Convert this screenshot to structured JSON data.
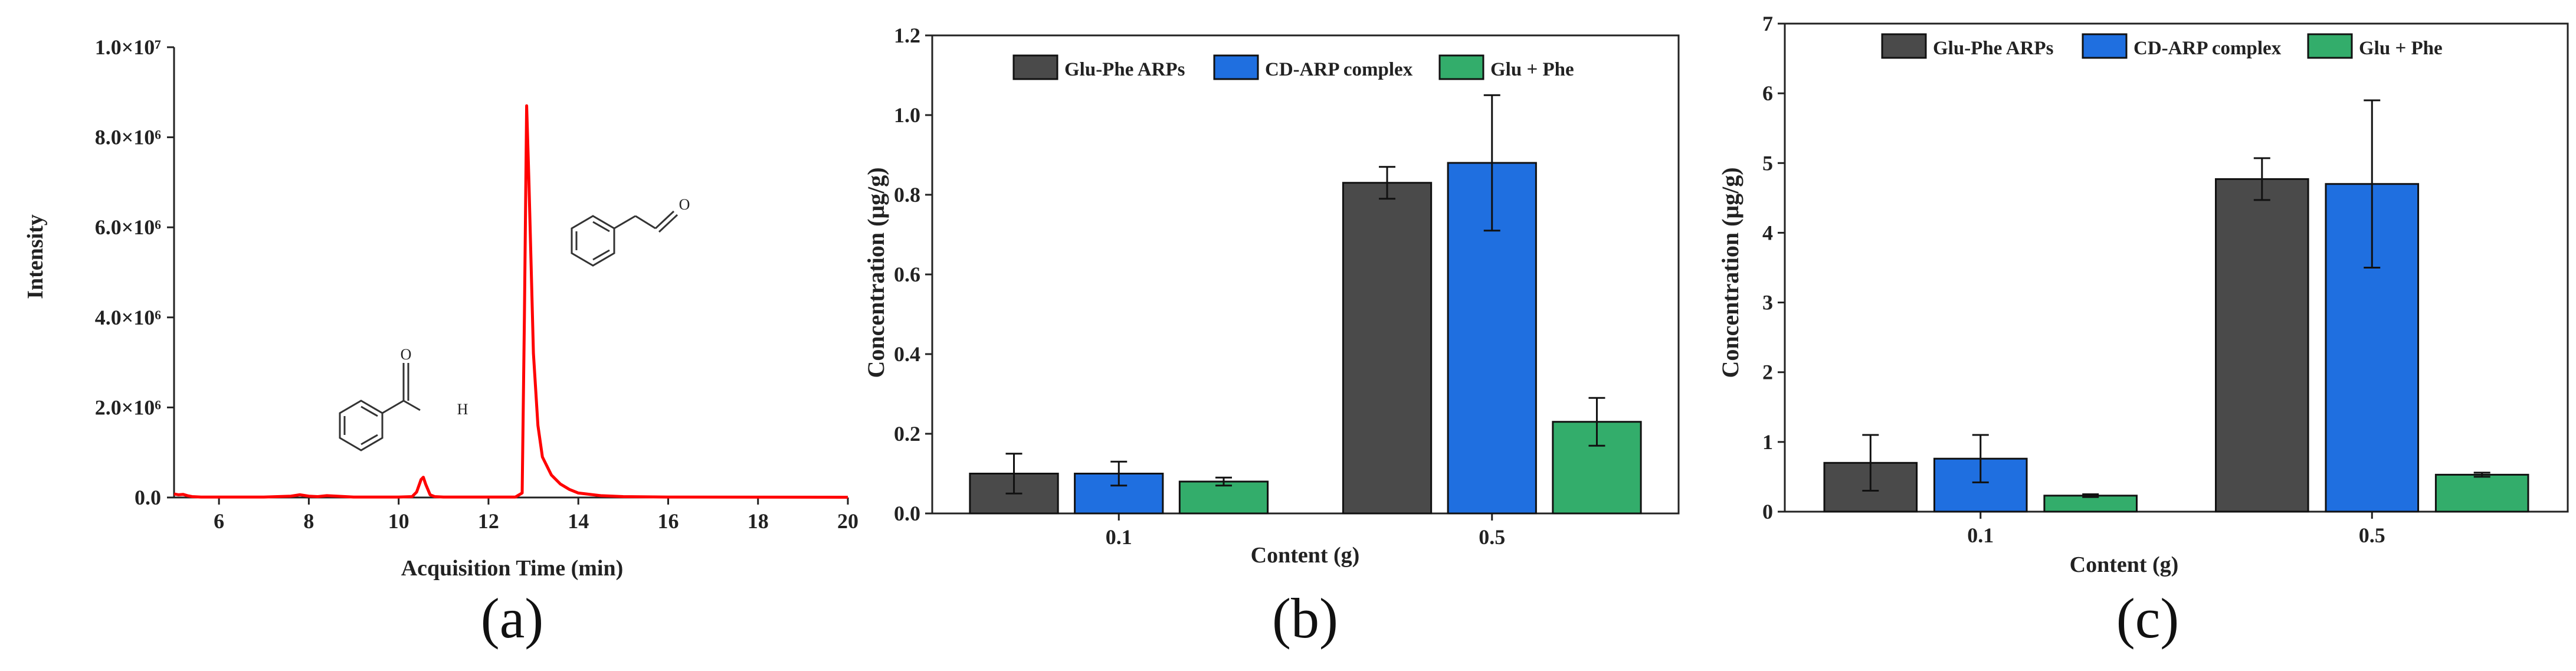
{
  "colors": {
    "glu_phe_arps": "#4a4a4a",
    "cd_arp_complex": "#1f6fe0",
    "glu_phe": "#33ad6b",
    "chromatogram": "#ff0000",
    "axis": "#222222"
  },
  "chart_data": [
    {
      "id": "a",
      "type": "line",
      "panel_label": "(a)",
      "xlabel": "Acquisition Time (min)",
      "ylabel": "Intensity",
      "xlim": [
        5,
        20
      ],
      "ylim": [
        0,
        10000000
      ],
      "x_ticks": [
        6,
        8,
        10,
        12,
        14,
        16,
        18,
        20
      ],
      "x_tick_labels": [
        "6",
        "8",
        "10",
        "12",
        "14",
        "16",
        "18",
        "20"
      ],
      "y_ticks": [
        0,
        2000000,
        4000000,
        6000000,
        8000000,
        10000000
      ],
      "y_tick_labels": [
        "0.0",
        "2.0×10⁶",
        "4.0×10⁶",
        "6.0×10⁶",
        "8.0×10⁶",
        "1.0×10⁷"
      ],
      "series": [
        {
          "name": "chromatogram",
          "x": [
            5.0,
            5.1,
            5.2,
            5.3,
            5.4,
            5.6,
            6.0,
            7.0,
            7.6,
            7.8,
            8.0,
            8.2,
            8.4,
            9.0,
            10.0,
            10.3,
            10.4,
            10.5,
            10.55,
            10.6,
            10.7,
            10.8,
            11.0,
            12.0,
            12.6,
            12.75,
            12.8,
            12.85,
            12.9,
            13.0,
            13.1,
            13.2,
            13.4,
            13.6,
            13.8,
            14.0,
            14.5,
            15.0,
            16.0,
            20.0
          ],
          "y": [
            80000,
            60000,
            70000,
            40000,
            20000,
            10000,
            10000,
            10000,
            30000,
            60000,
            30000,
            20000,
            40000,
            10000,
            10000,
            20000,
            120000,
            400000,
            450000,
            300000,
            60000,
            20000,
            10000,
            10000,
            10000,
            100000,
            4000000,
            8700000,
            7000000,
            3200000,
            1600000,
            900000,
            500000,
            300000,
            180000,
            100000,
            40000,
            20000,
            10000,
            5000
          ]
        }
      ]
    },
    {
      "id": "b",
      "type": "bar",
      "panel_label": "(b)",
      "xlabel": "Content (g)",
      "ylabel": "Concentration (μg/g)",
      "categories": [
        "0.1",
        "0.5"
      ],
      "ylim": [
        0,
        1.2
      ],
      "y_ticks": [
        0,
        0.2,
        0.4,
        0.6,
        0.8,
        1.0,
        1.2
      ],
      "y_tick_labels": [
        "0.0",
        "0.2",
        "0.4",
        "0.6",
        "0.8",
        "1.0",
        "1.2"
      ],
      "legend_position": "top",
      "series": [
        {
          "name": "Glu-Phe ARPs",
          "values": [
            0.1,
            0.83
          ],
          "errors": [
            0.05,
            0.04
          ]
        },
        {
          "name": "CD-ARP complex",
          "values": [
            0.1,
            0.88
          ],
          "errors": [
            0.03,
            0.17
          ]
        },
        {
          "name": "Glu + Phe",
          "values": [
            0.08,
            0.23
          ],
          "errors": [
            0.01,
            0.06
          ]
        }
      ]
    },
    {
      "id": "c",
      "type": "bar",
      "panel_label": "(c)",
      "xlabel": "Content (g)",
      "ylabel": "Concentration (μg/g)",
      "categories": [
        "0.1",
        "0.5"
      ],
      "ylim": [
        0,
        7
      ],
      "y_ticks": [
        0,
        1,
        2,
        3,
        4,
        5,
        6,
        7
      ],
      "y_tick_labels": [
        "0",
        "1",
        "2",
        "3",
        "4",
        "5",
        "6",
        "7"
      ],
      "legend_position": "top",
      "series": [
        {
          "name": "Glu-Phe ARPs",
          "values": [
            0.7,
            4.77
          ],
          "errors": [
            0.4,
            0.3
          ]
        },
        {
          "name": "CD-ARP complex",
          "values": [
            0.76,
            4.7
          ],
          "errors": [
            0.34,
            1.2
          ]
        },
        {
          "name": "Glu + Phe",
          "values": [
            0.23,
            0.53
          ],
          "errors": [
            0.02,
            0.03
          ]
        }
      ]
    }
  ],
  "structures": [
    {
      "name": "benzaldehyde",
      "atoms": [
        "O",
        "H"
      ]
    },
    {
      "name": "phenylacetaldehyde",
      "atoms": [
        "O"
      ]
    }
  ]
}
